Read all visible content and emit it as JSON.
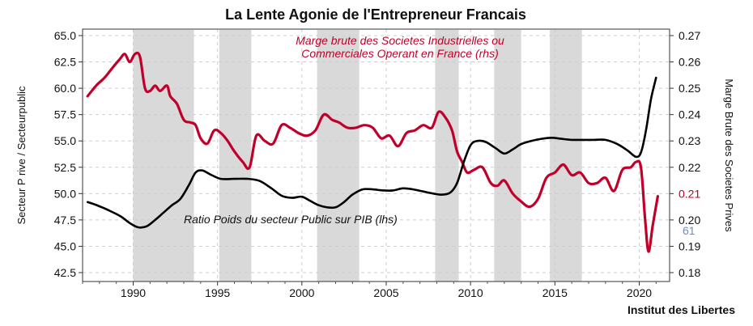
{
  "chart_data": {
    "type": "line",
    "title": "La Lente Agonie de l'Entrepreneur Francais",
    "ylabel": "Secteur P rive / Secteurpublic",
    "y2label": "Marge Brute des Societes Prives",
    "credit": "Institut des Libertes",
    "xlim": [
      1987,
      2021.8
    ],
    "ylim": [
      65.0,
      42.5
    ],
    "y2lim": [
      0.18,
      0.27
    ],
    "x_ticks": [
      "1990",
      "1995",
      "2000",
      "2005",
      "2010",
      "2015",
      "2020"
    ],
    "y_ticks": [
      "42.5",
      "45.0",
      "47.5",
      "50.0",
      "52.5",
      "55.0",
      "57.5",
      "60.0",
      "62.5",
      "65.0"
    ],
    "y2_ticks": [
      "0.27",
      "0.26",
      "0.25",
      "0.24",
      "0.23",
      "0.22",
      "0.21",
      "0.20",
      "0.19",
      "0.18"
    ],
    "y2_ticks_highlight": "0.21",
    "last_value_label": "61",
    "grid": true,
    "recessions": [
      [
        1990.0,
        1993.6
      ],
      [
        1995.1,
        1997.0
      ],
      [
        2000.9,
        2003.4
      ],
      [
        2007.9,
        2009.3
      ],
      [
        2011.4,
        2013.0
      ],
      [
        2014.7,
        2016.6
      ]
    ],
    "colors": {
      "margin": "#c0002a",
      "ratio": "#000000",
      "shade": "#d9d9d9",
      "last_value": "#6a8fbf"
    },
    "series": [
      {
        "name": "Marge brute des Societes Industrielles ou Commerciales Operant en France (rhs)",
        "axis": "right",
        "x": [
          1987.3,
          1987.8,
          1988.3,
          1988.8,
          1989.2,
          1989.5,
          1989.8,
          1990.1,
          1990.4,
          1990.7,
          1991.0,
          1991.3,
          1991.6,
          1992.0,
          1992.2,
          1992.6,
          1993.0,
          1993.4,
          1993.7,
          1994.0,
          1994.4,
          1994.8,
          1995.2,
          1995.6,
          1996.0,
          1996.5,
          1996.9,
          1997.3,
          1997.8,
          1998.3,
          1998.8,
          1999.3,
          1999.8,
          2000.3,
          2000.8,
          2001.3,
          2001.8,
          2002.2,
          2002.7,
          2003.2,
          2003.7,
          2004.2,
          2004.7,
          2005.2,
          2005.7,
          2006.2,
          2006.7,
          2007.2,
          2007.7,
          2008.1,
          2008.5,
          2008.9,
          2009.2,
          2009.5,
          2009.8,
          2010.2,
          2010.7,
          2011.2,
          2011.6,
          2012.0,
          2012.5,
          2013.0,
          2013.5,
          2014.0,
          2014.5,
          2015.0,
          2015.5,
          2016.0,
          2016.5,
          2017.0,
          2017.5,
          2018.0,
          2018.5,
          2019.0,
          2019.5,
          2019.8,
          2020.1,
          2020.35,
          2020.55,
          2020.8,
          2021.1
        ],
        "values": [
          0.247,
          0.251,
          0.254,
          0.258,
          0.261,
          0.263,
          0.26,
          0.263,
          0.262,
          0.25,
          0.249,
          0.251,
          0.249,
          0.251,
          0.247,
          0.244,
          0.238,
          0.237,
          0.236,
          0.231,
          0.229,
          0.234,
          0.233,
          0.23,
          0.226,
          0.222,
          0.22,
          0.232,
          0.23,
          0.229,
          0.236,
          0.235,
          0.233,
          0.232,
          0.234,
          0.24,
          0.238,
          0.237,
          0.235,
          0.235,
          0.236,
          0.235,
          0.231,
          0.232,
          0.228,
          0.233,
          0.234,
          0.236,
          0.235,
          0.241,
          0.239,
          0.234,
          0.226,
          0.222,
          0.218,
          0.219,
          0.22,
          0.214,
          0.213,
          0.215,
          0.21,
          0.207,
          0.205,
          0.208,
          0.216,
          0.218,
          0.221,
          0.217,
          0.218,
          0.214,
          0.214,
          0.216,
          0.211,
          0.219,
          0.22,
          0.222,
          0.22,
          0.2,
          0.188,
          0.198,
          0.209
        ]
      },
      {
        "name": "Ratio Poids du secteur Public sur PIB (lhs)",
        "axis": "left",
        "x": [
          1987.3,
          1988.0,
          1988.7,
          1989.3,
          1989.8,
          1990.3,
          1990.8,
          1991.3,
          1991.8,
          1992.3,
          1992.8,
          1993.3,
          1993.7,
          1994.1,
          1994.6,
          1995.2,
          1996.0,
          1996.8,
          1997.5,
          1998.2,
          1998.8,
          1999.4,
          2000.0,
          2000.5,
          2001.0,
          2001.5,
          2002.0,
          2002.5,
          2003.0,
          2003.6,
          2004.2,
          2004.8,
          2005.4,
          2006.0,
          2006.6,
          2007.2,
          2007.8,
          2008.3,
          2008.8,
          2009.2,
          2009.6,
          2010.0,
          2010.4,
          2010.9,
          2011.5,
          2012.0,
          2012.5,
          2013.0,
          2013.6,
          2014.2,
          2014.8,
          2015.4,
          2016.0,
          2016.6,
          2017.3,
          2018.0,
          2018.7,
          2019.3,
          2019.8,
          2020.1,
          2020.4,
          2020.7,
          2021.0
        ],
        "values": [
          49.2,
          48.8,
          48.3,
          47.8,
          47.2,
          46.8,
          46.9,
          47.5,
          48.2,
          48.9,
          49.5,
          50.8,
          52.0,
          52.2,
          51.8,
          51.4,
          51.4,
          51.4,
          51.2,
          50.5,
          49.8,
          49.6,
          49.7,
          49.3,
          48.9,
          48.7,
          48.7,
          49.2,
          49.9,
          50.4,
          50.4,
          50.3,
          50.3,
          50.5,
          50.4,
          50.2,
          50.0,
          49.9,
          50.1,
          51.0,
          53.0,
          54.6,
          55.0,
          54.9,
          54.3,
          53.8,
          54.2,
          54.7,
          55.0,
          55.2,
          55.3,
          55.2,
          55.1,
          55.1,
          55.1,
          55.1,
          54.7,
          54.1,
          53.5,
          53.9,
          56.0,
          59.0,
          61.0
        ]
      }
    ]
  }
}
